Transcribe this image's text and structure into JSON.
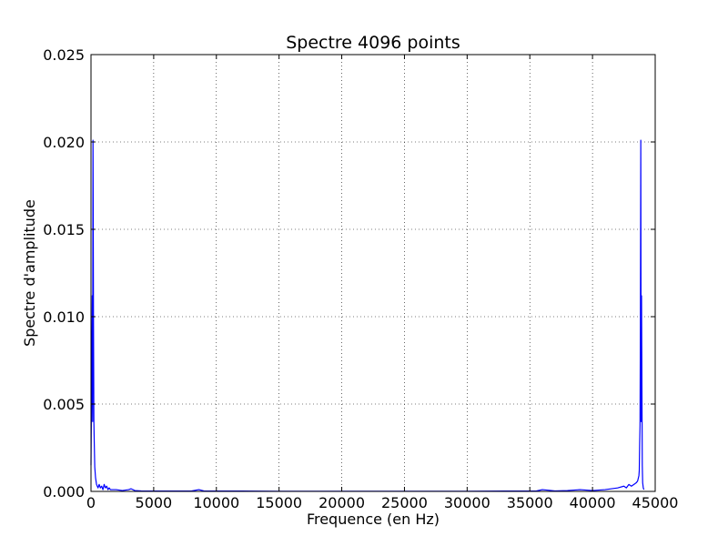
{
  "chart_data": {
    "type": "line",
    "title": "Spectre 4096 points",
    "xlabel": "Frequence (en Hz)",
    "ylabel": "Spectre d'amplitude",
    "xlim": [
      0,
      45000
    ],
    "ylim": [
      0,
      0.025
    ],
    "xticks": [
      0,
      5000,
      10000,
      15000,
      20000,
      25000,
      30000,
      35000,
      40000,
      45000
    ],
    "xtick_labels": [
      "0",
      "5000",
      "10000",
      "15000",
      "20000",
      "25000",
      "30000",
      "35000",
      "40000",
      "45000"
    ],
    "yticks": [
      0,
      0.005,
      0.01,
      0.015,
      0.02,
      0.025
    ],
    "ytick_labels": [
      "0.000",
      "0.005",
      "0.010",
      "0.015",
      "0.020",
      "0.025"
    ],
    "grid": true,
    "grid_style": "dotted",
    "line_color": "#0000ff",
    "series": [
      {
        "x": [
          0,
          50,
          100,
          130,
          160,
          200,
          230,
          260,
          300,
          330,
          360,
          400,
          440,
          500,
          560,
          650,
          750,
          850,
          950,
          1050,
          1150,
          1250,
          1350,
          1450,
          1550,
          1700,
          2000,
          2500,
          3000,
          3200,
          3500,
          4000,
          5000,
          6000,
          7000,
          8000,
          8600,
          9000,
          10000,
          12000,
          15000,
          20000,
          22050,
          25000,
          30000,
          33000,
          35500,
          36000,
          37000,
          38000,
          39000,
          40000,
          41000,
          42000,
          42500,
          42700,
          42900,
          43100,
          43300,
          43500,
          43600,
          43700,
          43730,
          43760,
          43790,
          43820,
          43850,
          43880,
          43910,
          43940,
          43970,
          44000,
          44050,
          44100
        ],
        "y": [
          0.0015,
          0.006,
          0.0112,
          0.004,
          0.0201,
          0.0095,
          0.004,
          0.0028,
          0.0014,
          0.0011,
          0.0008,
          0.0006,
          0.0004,
          0.0003,
          0.0002,
          0.0004,
          0.0002,
          0.0003,
          0.0001,
          0.0004,
          0.0002,
          0.0003,
          0.0001,
          0.0002,
          0.0001,
          0.0001,
          0.0001,
          5e-05,
          0.0001,
          0.00015,
          5e-05,
          3e-05,
          2e-05,
          2e-05,
          2e-05,
          2e-05,
          0.0001,
          3e-05,
          2e-05,
          2e-05,
          1e-05,
          1e-05,
          1e-05,
          1e-05,
          1e-05,
          2e-05,
          2e-05,
          0.0001,
          3e-05,
          5e-05,
          0.0001,
          5e-05,
          0.0001,
          0.0002,
          0.0003,
          0.0002,
          0.0004,
          0.0003,
          0.0004,
          0.0005,
          0.0006,
          0.0009,
          0.0012,
          0.0027,
          0.0038,
          0.0095,
          0.0201,
          0.004,
          0.0112,
          0.006,
          0.0015,
          0.0005,
          0.0002,
          0.0001
        ]
      }
    ]
  }
}
